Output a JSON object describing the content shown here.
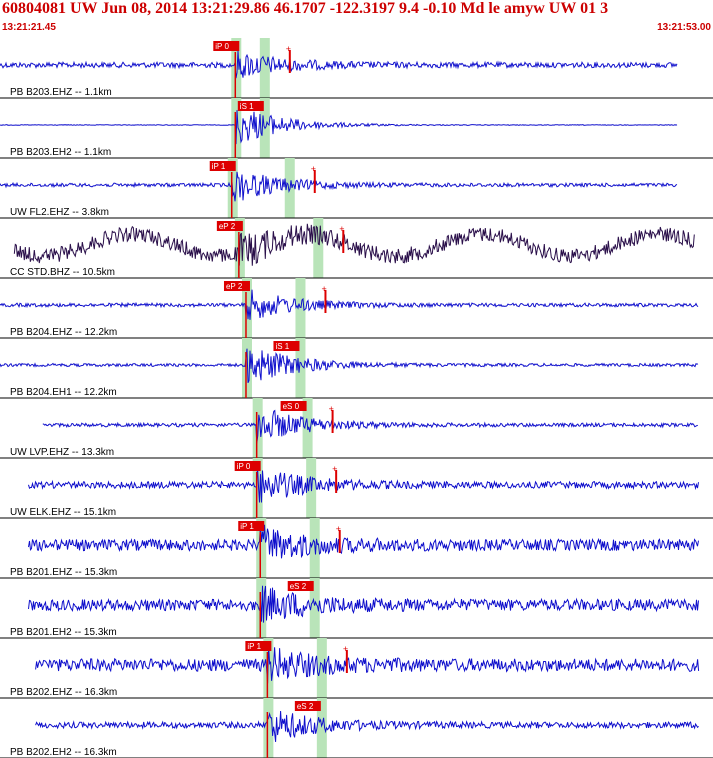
{
  "header": {
    "title": "60804081 UW Jun 08, 2014 13:21:29.86   46.1707 -122.3197  9.4 -0.10 Md le amyw UW 01   3",
    "time_start": "13:21:21.45",
    "time_end": "13:21:53.00"
  },
  "colors": {
    "trace": "#1010cc",
    "trace_alt": "#2a0f4a",
    "pick": "#dd0000",
    "pick_label_text": "#ffffff",
    "header": "#cc0000",
    "window": "#b9e4b9",
    "divider": "#000000"
  },
  "traces": [
    {
      "station": "PB B203.EHZ -- 1.1km",
      "p_label": "iP 0",
      "s_label": "",
      "p_time": 0.33,
      "s_time": 0.37,
      "amp": 0.18,
      "burst": 1.0,
      "trace_start": 0.0,
      "trace_end": 0.95,
      "dark": false,
      "s_red": true
    },
    {
      "station": "PB B203.EH2 -- 1.1km",
      "p_label": "",
      "s_label": "iS 1",
      "p_time": 0.33,
      "s_time": 0.37,
      "amp": 0.01,
      "burst": 1.6,
      "trace_start": 0.0,
      "trace_end": 0.95,
      "dark": false,
      "s_red": false
    },
    {
      "station": "UW FL2.EHZ -- 3.8km",
      "p_label": "iP 1",
      "s_label": "",
      "p_time": 0.325,
      "s_time": 0.405,
      "amp": 0.12,
      "burst": 1.3,
      "trace_start": 0.0,
      "trace_end": 0.95,
      "dark": false,
      "s_red": true
    },
    {
      "station": "CC STD.BHZ -- 10.5km",
      "p_label": "eP 2",
      "s_label": "",
      "p_time": 0.335,
      "s_time": 0.445,
      "amp": 0.5,
      "burst": 1.0,
      "trace_start": 0.02,
      "trace_end": 0.975,
      "dark": true,
      "s_red": true
    },
    {
      "station": "PB B204.EHZ -- 12.2km",
      "p_label": "eP 2",
      "s_label": "",
      "p_time": 0.345,
      "s_time": 0.42,
      "amp": 0.12,
      "burst": 1.2,
      "trace_start": 0.0,
      "trace_end": 0.98,
      "dark": false,
      "s_red": true
    },
    {
      "station": "PB B204.EH1 -- 12.2km",
      "p_label": "",
      "s_label": "iS 1",
      "p_time": 0.345,
      "s_time": 0.42,
      "amp": 0.1,
      "burst": 1.6,
      "trace_start": 0.0,
      "trace_end": 0.98,
      "dark": false,
      "s_red": false
    },
    {
      "station": "UW LVP.EHZ -- 13.3km",
      "p_label": "",
      "s_label": "eS 0",
      "p_time": 0.36,
      "s_time": 0.43,
      "amp": 0.12,
      "burst": 1.4,
      "trace_start": 0.06,
      "trace_end": 0.98,
      "dark": false,
      "s_red": true
    },
    {
      "station": "UW ELK.EHZ -- 15.1km",
      "p_label": "iP 0",
      "s_label": "",
      "p_time": 0.36,
      "s_time": 0.435,
      "amp": 0.22,
      "burst": 1.3,
      "trace_start": 0.04,
      "trace_end": 0.98,
      "dark": false,
      "s_red": true
    },
    {
      "station": "PB B201.EHZ -- 15.3km",
      "p_label": "iP 1",
      "s_label": "",
      "p_time": 0.365,
      "s_time": 0.44,
      "amp": 0.38,
      "burst": 1.2,
      "trace_start": 0.04,
      "trace_end": 0.98,
      "dark": false,
      "s_red": true
    },
    {
      "station": "PB B201.EH2 -- 15.3km",
      "p_label": "",
      "s_label": "eS 2",
      "p_time": 0.365,
      "s_time": 0.44,
      "amp": 0.38,
      "burst": 1.2,
      "trace_start": 0.04,
      "trace_end": 0.98,
      "dark": false,
      "s_red": false
    },
    {
      "station": "PB B202.EHZ -- 16.3km",
      "p_label": "iP 1",
      "s_label": "",
      "p_time": 0.375,
      "s_time": 0.45,
      "amp": 0.42,
      "burst": 1.1,
      "trace_start": 0.05,
      "trace_end": 0.98,
      "dark": false,
      "s_red": true
    },
    {
      "station": "PB B202.EH2 -- 16.3km",
      "p_label": "",
      "s_label": "eS 2",
      "p_time": 0.375,
      "s_time": 0.45,
      "amp": 0.2,
      "burst": 1.3,
      "trace_start": 0.05,
      "trace_end": 0.98,
      "dark": false,
      "s_red": false
    }
  ]
}
